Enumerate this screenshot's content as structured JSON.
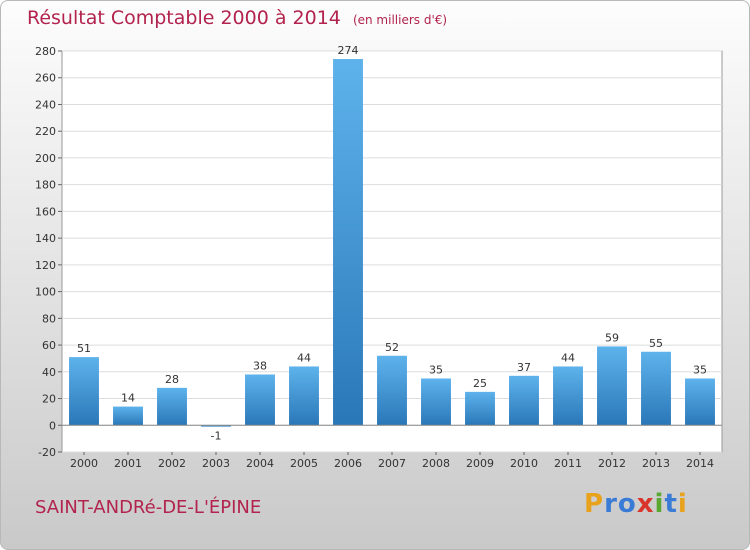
{
  "header": {
    "title": "Résultat Comptable 2000 à 2014",
    "subtitle": "(en milliers d'€)"
  },
  "footer": {
    "city": "SAINT-ANDRé-DE-L'ÉPINE",
    "logo": {
      "text": "Proxiti",
      "letters": [
        "P",
        "r",
        "o",
        "x",
        "i",
        "t",
        "i"
      ],
      "colors": [
        "#e8a21c",
        "#3a7bd5",
        "#3a7bd5",
        "#d9352b",
        "#5aa832",
        "#3a7bd5",
        "#e8a21c"
      ]
    }
  },
  "colors": {
    "title": "#b2234d",
    "bar_top": "#5eb3ec",
    "bar_bottom": "#2a77b8"
  },
  "chart_data": {
    "type": "bar",
    "categories": [
      "2000",
      "2001",
      "2002",
      "2003",
      "2004",
      "2005",
      "2006",
      "2007",
      "2008",
      "2009",
      "2010",
      "2011",
      "2012",
      "2013",
      "2014"
    ],
    "values": [
      51,
      14,
      28,
      -1,
      38,
      44,
      274,
      52,
      35,
      25,
      37,
      44,
      59,
      55,
      35
    ],
    "data_labels": [
      "51",
      "14",
      "28",
      "-1",
      "38",
      "44",
      "274",
      "52",
      "35",
      "25",
      "37",
      "44",
      "59",
      "55",
      "35"
    ],
    "ylim": [
      -20,
      280
    ],
    "yticks": [
      -20,
      0,
      20,
      40,
      60,
      80,
      100,
      120,
      140,
      160,
      180,
      200,
      220,
      240,
      260,
      280
    ],
    "grid": true,
    "title": "Résultat Comptable 2000 à 2014",
    "xlabel": "",
    "ylabel": ""
  }
}
